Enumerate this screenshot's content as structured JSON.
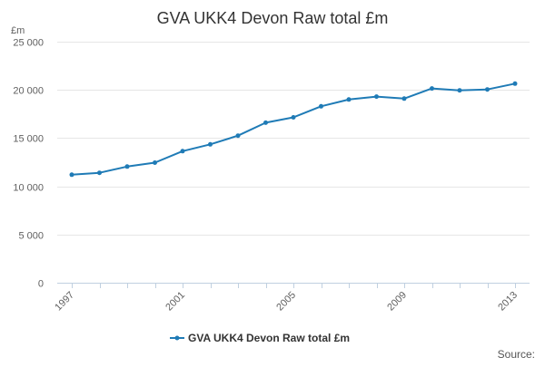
{
  "chart_data": {
    "type": "line",
    "title": "GVA UKK4 Devon Raw total £m",
    "ylabel": "£m",
    "xlabel": "",
    "x": [
      1997,
      1998,
      1999,
      2000,
      2001,
      2002,
      2003,
      2004,
      2005,
      2006,
      2007,
      2008,
      2009,
      2010,
      2011,
      2012,
      2013
    ],
    "series": [
      {
        "name": "GVA UKK4 Devon Raw total £m",
        "values": [
          11200,
          11400,
          12050,
          12450,
          13650,
          14350,
          15250,
          16600,
          17150,
          18300,
          19000,
          19300,
          19100,
          20150,
          19950,
          20050,
          20650
        ]
      }
    ],
    "ylim": [
      0,
      25000
    ],
    "yticks": [
      0,
      5000,
      10000,
      15000,
      20000,
      25000
    ],
    "ytick_labels": [
      "0",
      "5 000",
      "10 000",
      "15 000",
      "20 000",
      "25 000"
    ],
    "xticks": [
      1997,
      2001,
      2005,
      2009,
      2013
    ],
    "xtick_labels": [
      "1997",
      "2001",
      "2005",
      "2009",
      "2013"
    ],
    "grid": true,
    "legend": "bottom-center",
    "colors": {
      "series": "#1f7bb6",
      "grid": "#e6e6e6",
      "axis": "#c0d0e0",
      "text": "#333333"
    }
  },
  "source_label": "Source:"
}
